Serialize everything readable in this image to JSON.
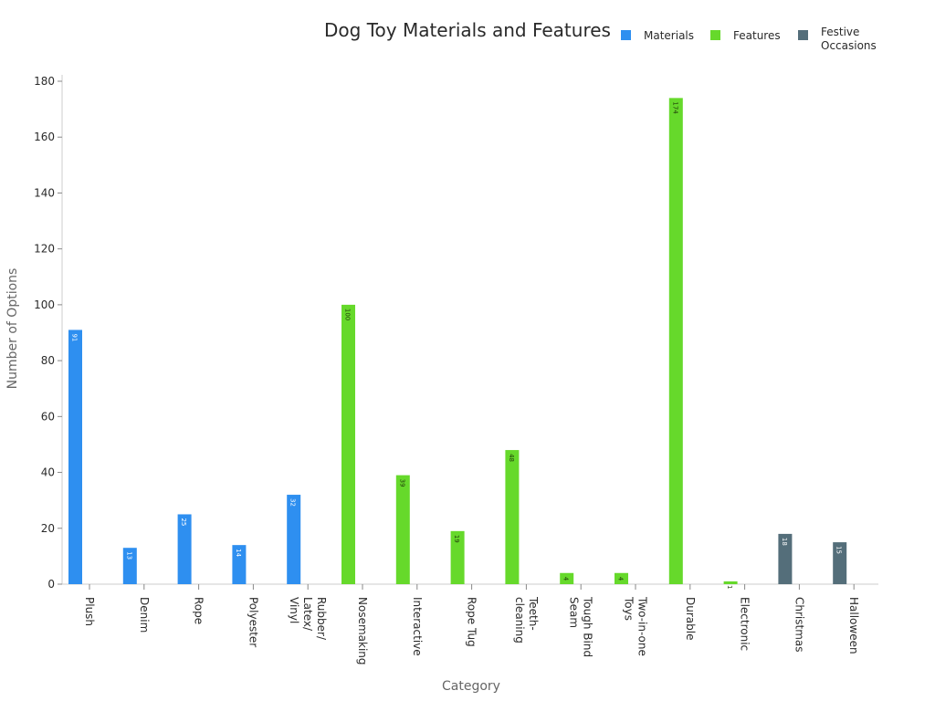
{
  "chart_data": {
    "type": "bar",
    "title": "Dog Toy Materials and Features",
    "xlabel": "Category",
    "ylabel": "Number of Options",
    "ylim": [
      0,
      180
    ],
    "yticks": [
      0,
      20,
      40,
      60,
      80,
      100,
      120,
      140,
      160,
      180
    ],
    "grid": false,
    "legend_position": "top-right",
    "categories": [
      [
        "Plush"
      ],
      [
        "Denim"
      ],
      [
        "Rope"
      ],
      [
        "Polyester"
      ],
      [
        "Rubber/",
        "Latex/",
        "Vinyl"
      ],
      [
        "Nosemaking"
      ],
      [
        "Interactive"
      ],
      [
        "Rope Tug"
      ],
      [
        "Teeth-",
        "cleaning"
      ],
      [
        "Tough Bind",
        "Seam"
      ],
      [
        "Two-in-one",
        "Toys"
      ],
      [
        "Durable"
      ],
      [
        "Electronic"
      ],
      [
        "Christmas"
      ],
      [
        "Halloween"
      ]
    ],
    "series": [
      {
        "name": "Materials",
        "color": "#2e8ff0",
        "values": [
          91,
          13,
          25,
          14,
          32,
          null,
          null,
          null,
          null,
          null,
          null,
          null,
          null,
          null,
          null
        ]
      },
      {
        "name": "Features",
        "color": "#66d92b",
        "values": [
          null,
          null,
          null,
          null,
          null,
          100,
          39,
          19,
          48,
          4,
          4,
          174,
          1,
          null,
          null
        ]
      },
      {
        "name": [
          "Festive",
          "Occasions"
        ],
        "color": "#546e7a",
        "values": [
          null,
          null,
          null,
          null,
          null,
          null,
          null,
          null,
          null,
          null,
          null,
          null,
          null,
          18,
          15
        ]
      }
    ]
  }
}
